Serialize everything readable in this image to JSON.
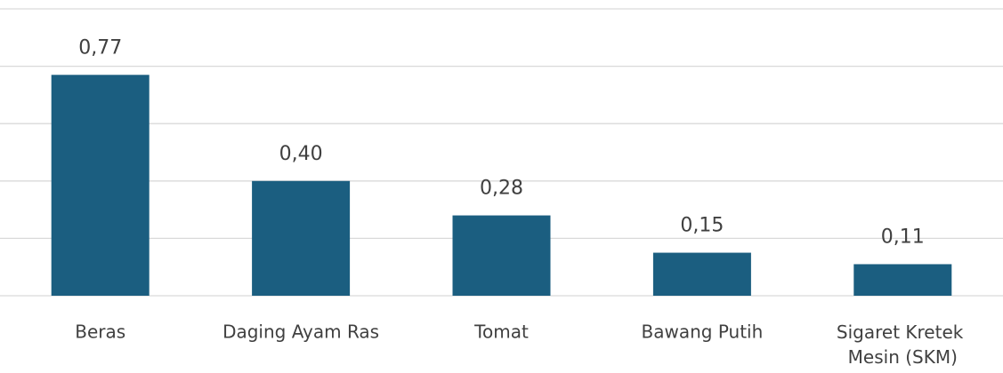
{
  "chart_data": {
    "type": "bar",
    "categories": [
      "Beras",
      "Daging Ayam Ras",
      "Tomat",
      "Bawang Putih",
      "Sigaret Kretek Mesin (SKM)"
    ],
    "values": [
      0.77,
      0.4,
      0.28,
      0.15,
      0.11
    ],
    "value_labels": [
      "0,77",
      "0,40",
      "0,28",
      "0,15",
      "0,11"
    ],
    "color": "#1b5e80",
    "ylim": [
      0,
      1
    ],
    "yticks": [
      0,
      0.2,
      0.4,
      0.6,
      0.8,
      1
    ],
    "grid": true
  }
}
